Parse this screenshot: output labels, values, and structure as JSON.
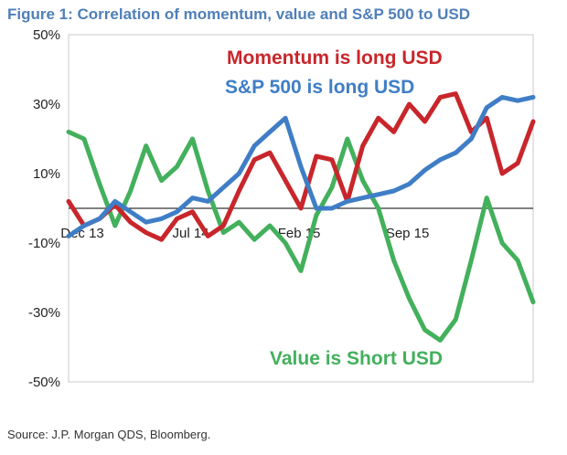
{
  "figure": {
    "title": "Figure 1: Correlation of momentum, value and S&P 500 to USD",
    "source": "Source: J.P. Morgan QDS, Bloomberg."
  },
  "colors": {
    "momentum": "#c8262b",
    "sp500": "#3f7ec6",
    "value": "#43b05c",
    "title": "#4f7fb8"
  },
  "chart_data": {
    "type": "line",
    "title": "",
    "xlabel": "",
    "ylabel": "",
    "ylim": [
      -50,
      50
    ],
    "y_ticks": [
      "50%",
      "30%",
      "10%",
      "-10%",
      "-30%",
      "-50%"
    ],
    "y_tick_values": [
      50,
      30,
      10,
      -10,
      -30,
      -50
    ],
    "x_tick_labels": [
      "Dec 13",
      "Jul 14",
      "Feb 15",
      "Sep 15"
    ],
    "x_tick_positions": [
      0,
      7,
      14,
      21
    ],
    "xlim": [
      0,
      30
    ],
    "grid": false,
    "annotations": [
      {
        "text": "Momentum is long USD",
        "series": "momentum"
      },
      {
        "text": "S&P 500 is long USD",
        "series": "sp500"
      },
      {
        "text": "Value is Short USD",
        "series": "value"
      }
    ],
    "series": [
      {
        "key": "momentum",
        "x": [
          0,
          1,
          2,
          3,
          4,
          5,
          6,
          7,
          8,
          9,
          10,
          11,
          12,
          13,
          14,
          15,
          16,
          17,
          18,
          19,
          20,
          21,
          22,
          23,
          24,
          25,
          26,
          27,
          28,
          29,
          30
        ],
        "values": [
          2,
          -5,
          -3,
          1,
          -4,
          -7,
          -9,
          -3,
          -1,
          -8,
          -5,
          5,
          14,
          16,
          8,
          0,
          15,
          14,
          2,
          18,
          26,
          22,
          30,
          25,
          32,
          33,
          22,
          26,
          10,
          13,
          25
        ]
      },
      {
        "key": "sp500",
        "x": [
          0,
          1,
          2,
          3,
          4,
          5,
          6,
          7,
          8,
          9,
          10,
          11,
          12,
          13,
          14,
          15,
          16,
          17,
          18,
          19,
          20,
          21,
          22,
          23,
          24,
          25,
          26,
          27,
          28,
          29,
          30
        ],
        "values": [
          -8,
          -5,
          -3,
          2,
          -1,
          -4,
          -3,
          -1,
          3,
          2,
          6,
          10,
          18,
          22,
          26,
          12,
          0,
          0,
          2,
          3,
          4,
          5,
          7,
          11,
          14,
          16,
          20,
          29,
          32,
          31,
          32
        ]
      },
      {
        "key": "value",
        "x": [
          0,
          1,
          2,
          3,
          4,
          5,
          6,
          7,
          8,
          9,
          10,
          11,
          12,
          13,
          14,
          15,
          16,
          17,
          18,
          19,
          20,
          21,
          22,
          23,
          24,
          25,
          26,
          27,
          28,
          29,
          30
        ],
        "values": [
          22,
          20,
          7,
          -5,
          5,
          18,
          8,
          12,
          20,
          5,
          -7,
          -4,
          -9,
          -5,
          -10,
          -18,
          -2,
          6,
          20,
          8,
          0,
          -15,
          -26,
          -35,
          -38,
          -32,
          -15,
          3,
          -10,
          -15,
          -27
        ]
      }
    ]
  }
}
